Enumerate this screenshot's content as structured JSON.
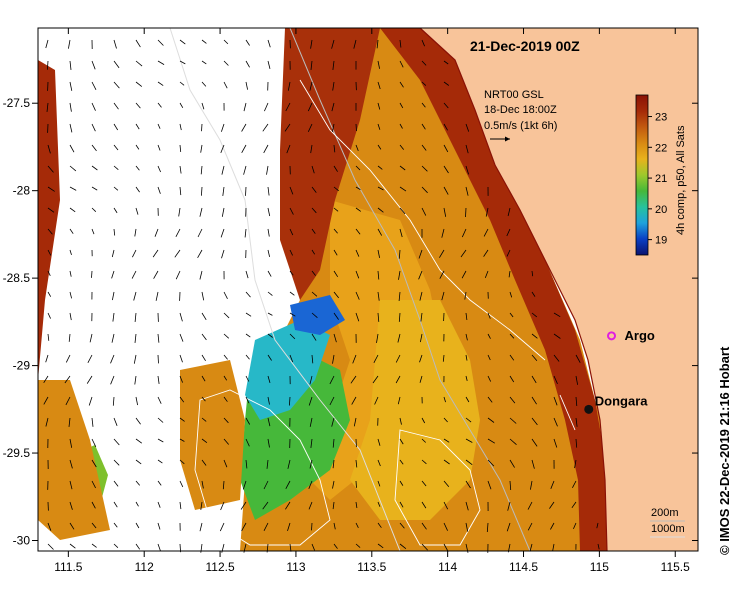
{
  "title": "21-Dec-2019 00Z",
  "current_legend": {
    "line1": "NRT00 GSL",
    "line2": "18-Dec 18:00Z",
    "line3": "0.5m/s (1kt 6h)"
  },
  "colorbar": {
    "label": "4h comp, p50, All Sats",
    "ticks": [
      "23",
      "22",
      "21",
      "20",
      "19"
    ],
    "tick_values": [
      23,
      22,
      21,
      20,
      19
    ],
    "range": [
      18.5,
      23.7
    ],
    "colors": [
      "#0b1370",
      "#0a3fc4",
      "#1fa2dc",
      "#27c29c",
      "#46b83a",
      "#9ec92c",
      "#e8b21c",
      "#d88a13",
      "#c25a0f",
      "#a52a08",
      "#8a1206"
    ]
  },
  "axes": {
    "x_ticks": [
      "111.5",
      "112",
      "112.5",
      "113",
      "113.5",
      "114",
      "114.5",
      "115",
      "115.5"
    ],
    "x_values": [
      111.5,
      112,
      112.5,
      113,
      113.5,
      114,
      114.5,
      115,
      115.5
    ],
    "y_ticks": [
      "-27.5",
      "-28",
      "-28.5",
      "-29",
      "-29.5",
      "-30"
    ],
    "y_values": [
      -27.5,
      -28,
      -28.5,
      -29,
      -29.5,
      -30
    ],
    "lon_range": [
      111.3,
      115.65
    ],
    "lat_range": [
      -30.06,
      -27.07
    ]
  },
  "places": [
    {
      "name": "Argo",
      "lon": 115.08,
      "lat": -28.83,
      "marker": "magenta-star"
    },
    {
      "name": "Dongara",
      "lon": 114.93,
      "lat": -29.25,
      "marker": "black-dot"
    }
  ],
  "isobath_legend": {
    "shallow": "200m",
    "deep": "1000m"
  },
  "credit": "© IMOS 22-Dec-2019 21:16 Hobart",
  "colors": {
    "land": "#f8c49a",
    "ocean_white": "#ffffff"
  }
}
